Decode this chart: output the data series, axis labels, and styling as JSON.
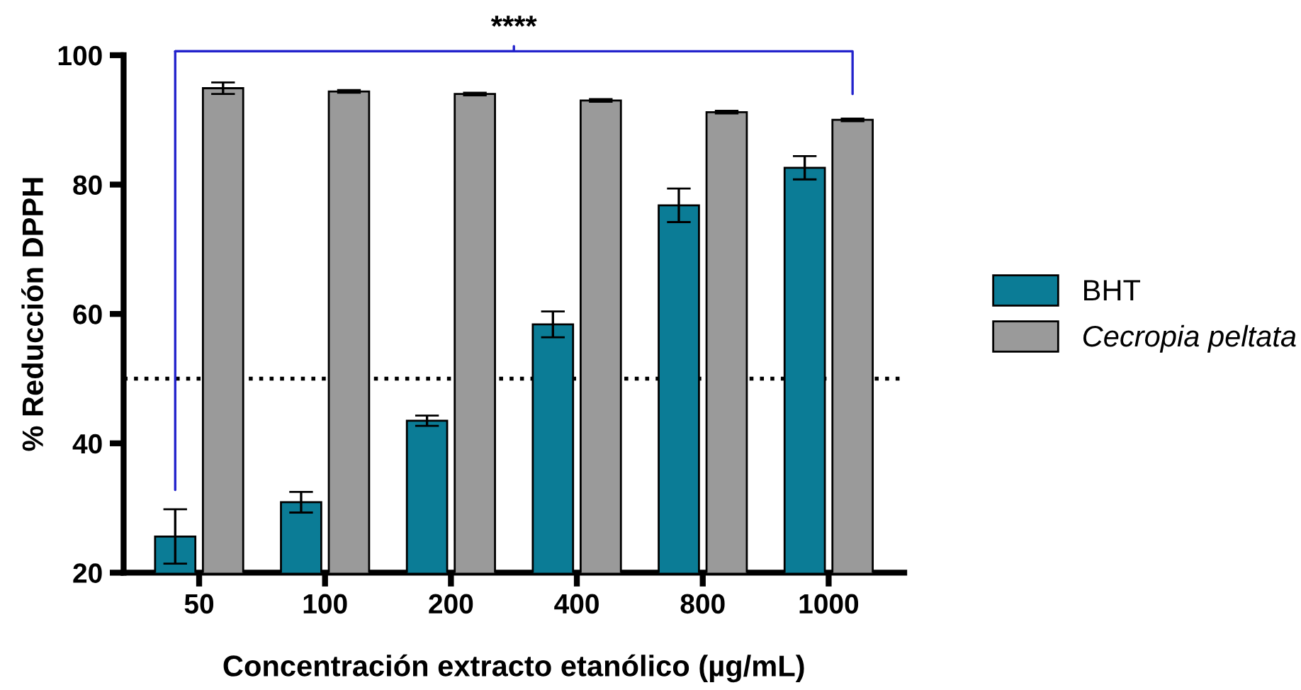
{
  "chart_data": {
    "type": "bar",
    "xlabel": "Concentración extracto etanólico (µg/mL)",
    "ylabel": "% Reducción DPPH",
    "categories": [
      "50",
      "100",
      "200",
      "400",
      "800",
      "1000"
    ],
    "series": [
      {
        "name": "BHT",
        "color": "#0b7c96",
        "values": [
          25.6,
          30.9,
          43.5,
          58.4,
          76.8,
          82.6
        ],
        "errors": [
          4.2,
          1.6,
          0.8,
          2.0,
          2.6,
          1.8
        ]
      },
      {
        "name": "Cecropia peltata",
        "color": "#9a9a9a",
        "values": [
          94.9,
          94.4,
          94.0,
          93.0,
          91.2,
          90.0
        ],
        "errors": [
          0.9,
          0.2,
          0.2,
          0.2,
          0.2,
          0.2
        ]
      }
    ],
    "ylim": [
      20,
      100
    ],
    "yticks": [
      20,
      40,
      60,
      80,
      100
    ],
    "ref_lines": [
      {
        "axis": "y",
        "value": 50,
        "color": "#000000",
        "line_style": "dotted"
      }
    ],
    "annotations": [
      "****"
    ],
    "legend": "right",
    "grid": false
  }
}
